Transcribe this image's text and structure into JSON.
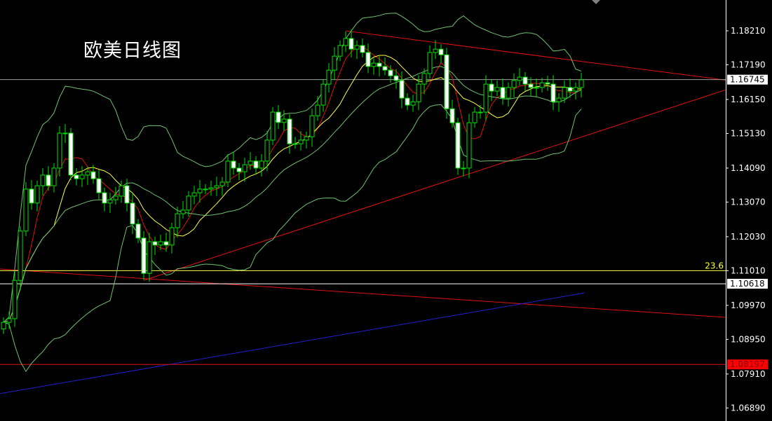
{
  "chart_data": {
    "type": "candlestick",
    "title": "欧美日线图",
    "y_ticks": [
      "1.18210",
      "1.17190",
      "1.16150",
      "1.15130",
      "1.14090",
      "1.13070",
      "1.12030",
      "1.11010",
      "1.09970",
      "1.08950",
      "1.07910",
      "1.06890"
    ],
    "ylim": [
      1.0655,
      1.19
    ],
    "closes": [
      1.0946,
      1.0957,
      1.1072,
      1.122,
      1.1346,
      1.1304,
      1.1356,
      1.1388,
      1.1356,
      1.1409,
      1.1514,
      1.1514,
      1.1388,
      1.1377,
      1.1388,
      1.1398,
      1.1377,
      1.1335,
      1.1304,
      1.1314,
      1.1325,
      1.1356,
      1.1304,
      1.1241,
      1.1199,
      1.1093,
      1.1188,
      1.1178,
      1.1188,
      1.1178,
      1.123,
      1.1272,
      1.1283,
      1.1325,
      1.1335,
      1.1346,
      1.1346,
      1.135,
      1.1356,
      1.1367,
      1.143,
      1.1409,
      1.1398,
      1.1419,
      1.143,
      1.1409,
      1.143,
      1.1493,
      1.1577,
      1.1546,
      1.1556,
      1.1482,
      1.1482,
      1.1493,
      1.1503,
      1.1566,
      1.1598,
      1.1661,
      1.1703,
      1.1745,
      1.1777,
      1.1798,
      1.1766,
      1.1777,
      1.1756,
      1.1714,
      1.1724,
      1.1714,
      1.1703,
      1.1686,
      1.1672,
      1.1619,
      1.1598,
      1.1608,
      1.1661,
      1.1693,
      1.1756,
      1.1766,
      1.1749,
      1.1587,
      1.1545,
      1.1409,
      1.1409,
      1.1545,
      1.1577,
      1.1577,
      1.1661,
      1.164,
      1.1651,
      1.1619,
      1.1651,
      1.1672,
      1.1682,
      1.1661,
      1.1651,
      1.1651,
      1.1665,
      1.1661,
      1.1608,
      1.1619,
      1.1651,
      1.164,
      1.1651,
      1.1674
    ],
    "indicators": [
      {
        "kind": "sma",
        "period": 5,
        "color": "#e01010"
      },
      {
        "kind": "sma",
        "period": 10,
        "color": "#ffff40"
      },
      {
        "kind": "bollinger",
        "period": 20,
        "color": "#70c070"
      }
    ],
    "trendlines": [
      {
        "color": "#e01010",
        "from": [
          61,
          1.1821
        ],
        "to": [
          128.75,
          1.1673
        ]
      },
      {
        "color": "#e01010",
        "from": [
          25,
          1.1072
        ],
        "to": [
          128.75,
          1.1644
        ]
      },
      {
        "color": "#e01010",
        "from": [
          -0.6,
          1.1106
        ],
        "to": [
          128.75,
          1.0961
        ]
      },
      {
        "color": "#2020d0",
        "from": [
          -0.6,
          1.0732
        ],
        "to": [
          103.5,
          1.1034
        ]
      }
    ],
    "levels": [
      {
        "price": 1.16745,
        "label": "1.16745",
        "color": "#a0a0a0",
        "box_bg": "#ffffff",
        "box_fg": "#000000"
      },
      {
        "price": 1.1101,
        "label": "23.6",
        "color": "#ffff40",
        "fib": true
      },
      {
        "price": 1.10618,
        "label": "1.10618",
        "color": "#ffffff",
        "box_bg": "#ffffff",
        "box_fg": "#000000"
      },
      {
        "price": 1.08197,
        "label": "1.08197",
        "color": "#e01010",
        "box_bg": "#ff0000",
        "box_fg": "#800000"
      }
    ],
    "colors": {
      "background": "#000000",
      "candle_outline": "#00e000",
      "bear_body": "#ffffff",
      "bull_body": "#000000",
      "axis": "#ffffff"
    }
  }
}
